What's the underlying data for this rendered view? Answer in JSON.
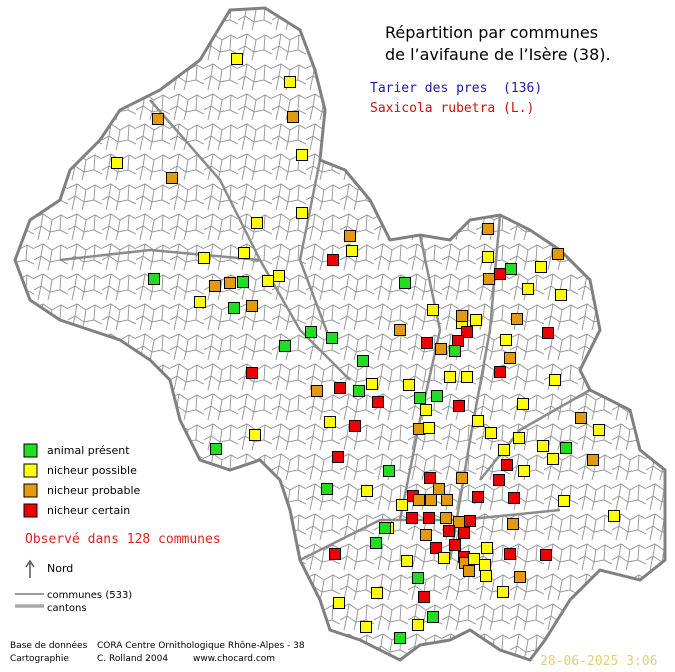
{
  "header": {
    "title_lines": [
      "Répartition par communes",
      "de l’avifaune de l’Isère (38)."
    ]
  },
  "species": {
    "common_name": "Tarier des pres  (136)",
    "scientific_name": "Saxicola rubetra (L.)"
  },
  "legend": {
    "items": [
      {
        "label": "animal présent",
        "color": "#22dd22"
      },
      {
        "label": "nicheur possible",
        "color": "#ffff00"
      },
      {
        "label": "nicheur probable",
        "color": "#e49a10"
      },
      {
        "label": "nicheur certain",
        "color": "#ee0000"
      }
    ],
    "observed": "Observé dans 128 communes",
    "north": "Nord",
    "communes": "communes (533)",
    "cantons": "cantons"
  },
  "footer": {
    "database_label": "Base de données",
    "database": "CORA Centre Ornithologique Rhône-Alpes - 38",
    "cartography_label": "Cartographie",
    "author": "C. Rolland 2004",
    "website": "www.chocard.com",
    "date": "28-06-2025 3:06"
  }
}
